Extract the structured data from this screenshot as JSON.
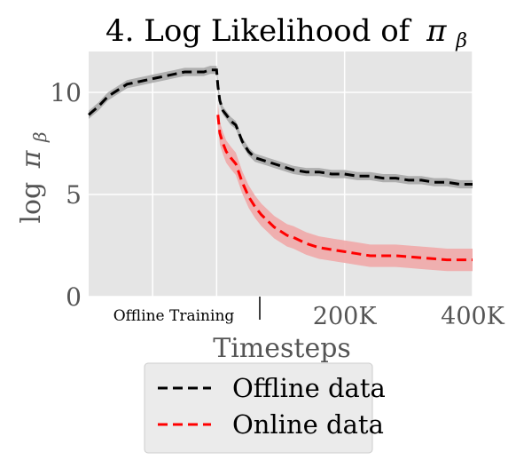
{
  "chart_data": {
    "type": "line",
    "title": "4. Log Likelihood of",
    "title_symbol": "π",
    "title_subscript": "β",
    "ylabel_prefix": "log",
    "ylabel_symbol": "π",
    "ylabel_subscript": "β",
    "xlabel": "Timesteps",
    "x_region_label": "Offline Training",
    "x_ticks": [
      "200K",
      "400K"
    ],
    "y_ticks": [
      "0",
      "5",
      "10"
    ],
    "ylim": [
      0,
      12
    ],
    "grid": true,
    "legend_position": "bottom-center",
    "series": [
      {
        "name": "Offline data",
        "color": "#000000",
        "band_color": "#a9a9a9",
        "style": "dashed",
        "x": [
          -200,
          -185,
          -170,
          -155,
          -140,
          -125,
          -110,
          -95,
          -80,
          -65,
          -50,
          -35,
          -20,
          -10,
          0,
          2,
          5,
          10,
          15,
          22,
          30,
          40,
          50,
          60,
          70,
          80,
          90,
          100,
          120,
          140,
          160,
          180,
          200,
          220,
          240,
          260,
          280,
          300,
          320,
          340,
          360,
          380,
          400
        ],
        "y": [
          8.9,
          9.3,
          9.8,
          10.1,
          10.4,
          10.5,
          10.6,
          10.7,
          10.8,
          10.9,
          11.0,
          11.0,
          11.0,
          11.1,
          11.1,
          10.3,
          9.6,
          9.1,
          8.9,
          8.6,
          8.4,
          7.6,
          7.1,
          6.8,
          6.7,
          6.6,
          6.5,
          6.4,
          6.2,
          6.1,
          6.1,
          6.0,
          6.0,
          5.9,
          5.9,
          5.8,
          5.8,
          5.7,
          5.7,
          5.6,
          5.6,
          5.5,
          5.5
        ],
        "band_half_width": 0.2
      },
      {
        "name": "Online data",
        "color": "#ff0000",
        "band_color": "#f0a8a8",
        "style": "dashed",
        "x": [
          2,
          5,
          10,
          15,
          22,
          30,
          40,
          50,
          60,
          70,
          80,
          90,
          100,
          110,
          120,
          140,
          160,
          180,
          200,
          220,
          240,
          260,
          280,
          300,
          320,
          340,
          360,
          380,
          400
        ],
        "y": [
          8.9,
          8.0,
          7.5,
          7.1,
          6.8,
          6.5,
          5.6,
          4.9,
          4.4,
          4.0,
          3.7,
          3.4,
          3.2,
          3.0,
          2.9,
          2.6,
          2.4,
          2.3,
          2.2,
          2.1,
          2.0,
          2.0,
          2.0,
          1.95,
          1.9,
          1.85,
          1.8,
          1.8,
          1.8
        ],
        "band_half_width": 0.55
      }
    ]
  }
}
